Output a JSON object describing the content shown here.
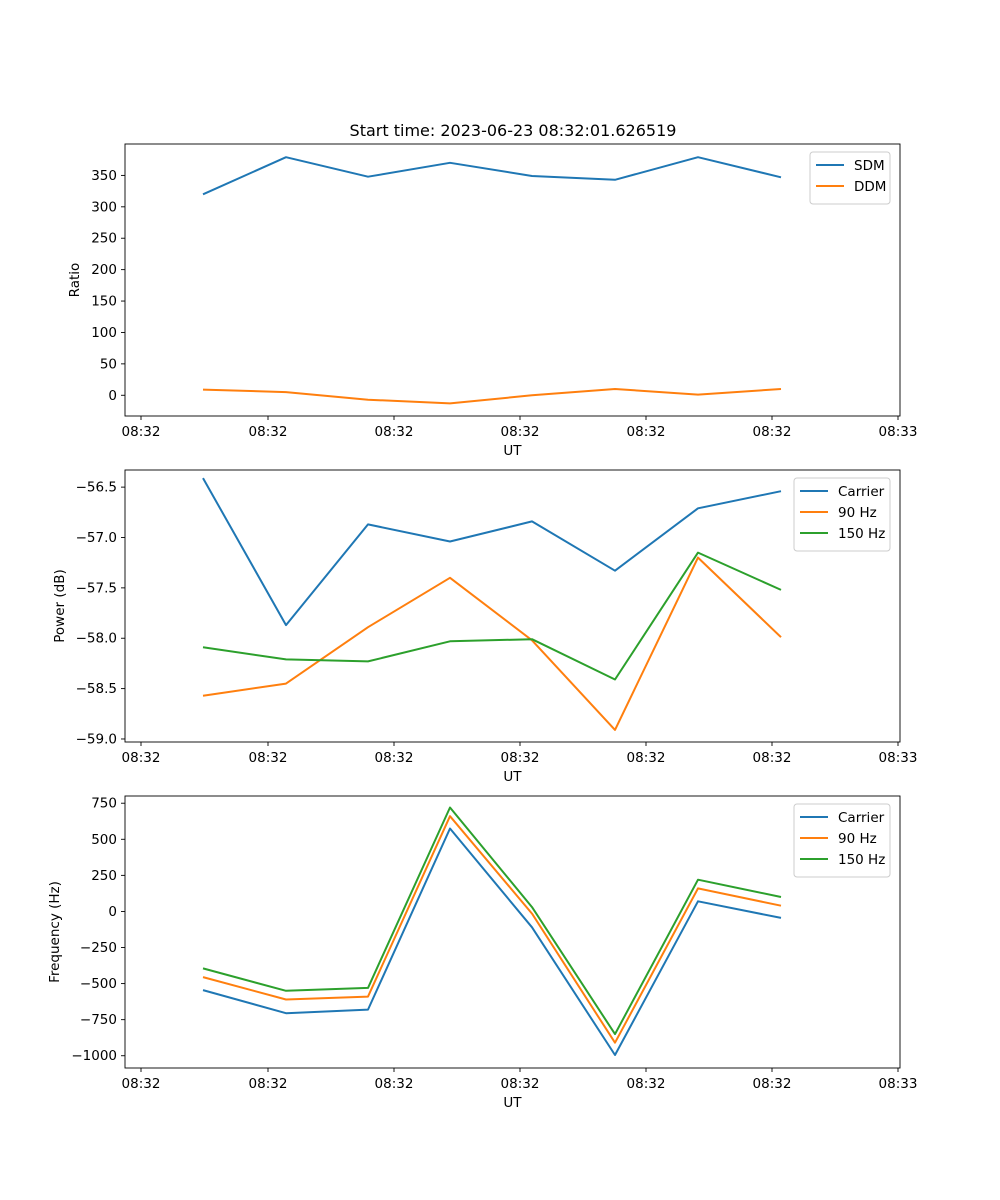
{
  "figure_title": "Start time: 2023-06-23 08:32:01.626519",
  "chart_data": [
    {
      "type": "line",
      "title": "Start time: 2023-06-23 08:32:01.626519",
      "xlabel": "UT",
      "ylabel": "Ratio",
      "x_tick_labels": [
        "08:32",
        "08:32",
        "08:32",
        "08:32",
        "08:32",
        "08:32",
        "08:33"
      ],
      "y_ticks": [
        0,
        50,
        100,
        150,
        200,
        250,
        300,
        350
      ],
      "ylim": [
        -33,
        400
      ],
      "legend_position": "upper right",
      "grid": false,
      "series": [
        {
          "name": "SDM",
          "color": "#1f77b4",
          "values": [
            320,
            379,
            348,
            370,
            349,
            343,
            379,
            347
          ]
        },
        {
          "name": "DDM",
          "color": "#ff7f0e",
          "values": [
            9,
            5,
            -7,
            -13,
            0,
            10,
            1,
            10
          ]
        }
      ]
    },
    {
      "type": "line",
      "title": "",
      "xlabel": "UT",
      "ylabel": "Power (dB)",
      "x_tick_labels": [
        "08:32",
        "08:32",
        "08:32",
        "08:32",
        "08:32",
        "08:32",
        "08:33"
      ],
      "y_ticks": [
        -56.5,
        -57.0,
        -57.5,
        -58.0,
        -58.5,
        -59.0
      ],
      "y_tick_labels": [
        "−56.5",
        "−57.0",
        "−57.5",
        "−58.0",
        "−58.5",
        "−59.0"
      ],
      "ylim": [
        -59.03,
        -56.33
      ],
      "legend_position": "upper right",
      "grid": false,
      "series": [
        {
          "name": "Carrier",
          "color": "#1f77b4",
          "values": [
            -56.41,
            -57.87,
            -56.87,
            -57.04,
            -56.84,
            -57.33,
            -56.71,
            -56.54
          ]
        },
        {
          "name": "90 Hz",
          "color": "#ff7f0e",
          "values": [
            -58.57,
            -58.45,
            -57.89,
            -57.4,
            -58.02,
            -58.91,
            -57.2,
            -57.99
          ]
        },
        {
          "name": "150 Hz",
          "color": "#2ca02c",
          "values": [
            -58.09,
            -58.21,
            -58.23,
            -58.03,
            -58.01,
            -58.41,
            -57.15,
            -57.52
          ]
        }
      ]
    },
    {
      "type": "line",
      "title": "",
      "xlabel": "UT",
      "ylabel": "Frequency (Hz)",
      "x_tick_labels": [
        "08:32",
        "08:32",
        "08:32",
        "08:32",
        "08:32",
        "08:32",
        "08:33"
      ],
      "y_ticks": [
        750,
        500,
        250,
        0,
        -250,
        -500,
        -750,
        -1000
      ],
      "y_tick_labels": [
        "750",
        "500",
        "250",
        "0",
        "−250",
        "−500",
        "−750",
        "−1000"
      ],
      "ylim": [
        -1085,
        800
      ],
      "legend_position": "upper right",
      "grid": false,
      "series": [
        {
          "name": "Carrier",
          "color": "#1f77b4",
          "values": [
            -545,
            -705,
            -680,
            575,
            -110,
            -995,
            70,
            -45
          ]
        },
        {
          "name": "90 Hz",
          "color": "#ff7f0e",
          "values": [
            -455,
            -610,
            -590,
            660,
            -15,
            -910,
            160,
            40
          ]
        },
        {
          "name": "150 Hz",
          "color": "#2ca02c",
          "values": [
            -395,
            -550,
            -530,
            720,
            30,
            -850,
            220,
            100
          ]
        }
      ]
    }
  ]
}
